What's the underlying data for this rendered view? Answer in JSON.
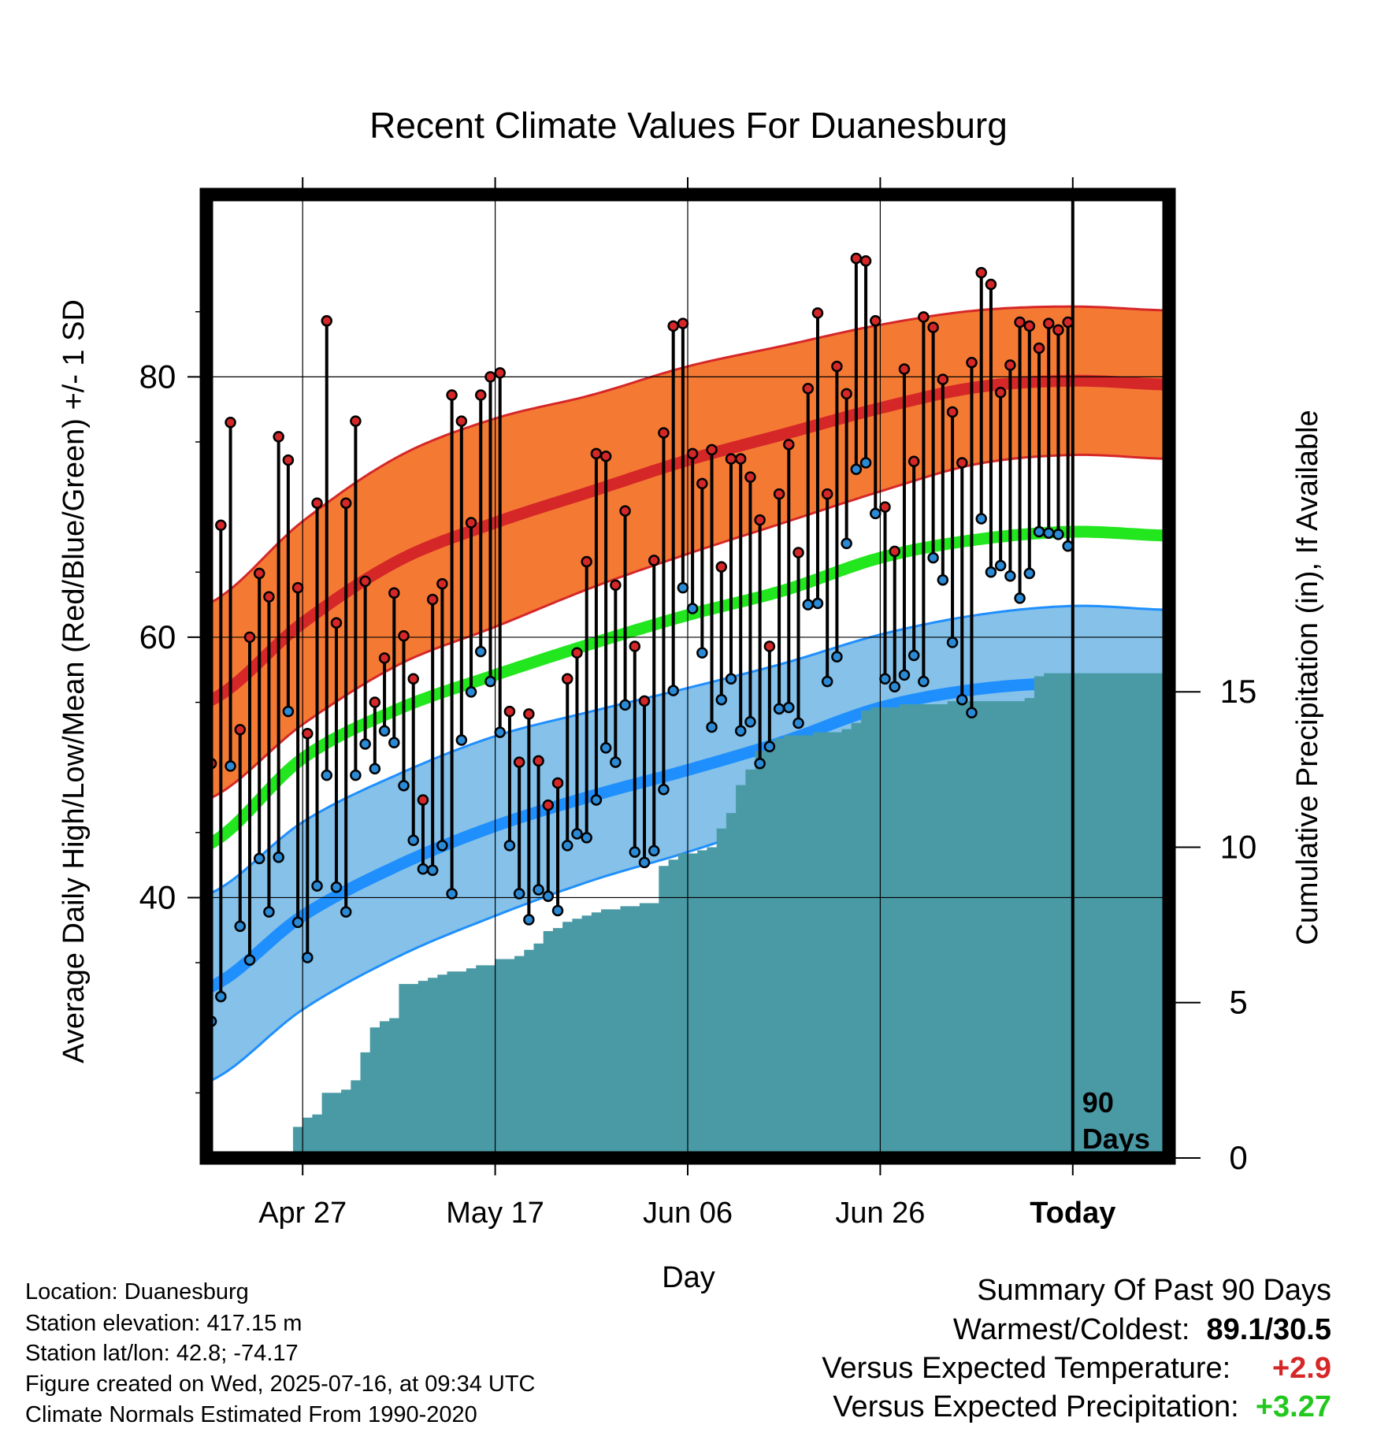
{
  "title": "Recent Climate Values For Duanesburg",
  "chart_data": {
    "type": "line",
    "title": "Recent Climate Values For Duanesburg",
    "xlabel": "Day",
    "ylabel": "Average Daily High/Low/Mean (Red/Blue/Green) +/- 1 SD",
    "y2label": "Cumulative Precipitation (in), If Available",
    "x_ticks": [
      "Apr 27",
      "May 17",
      "Jun 06",
      "Jun 26",
      "Today"
    ],
    "x_tick_days": [
      -80,
      -60,
      -40,
      -20,
      0
    ],
    "x_range_days": [
      -90,
      10
    ],
    "ylim": [
      20,
      94
    ],
    "y_ticks": [
      40,
      60,
      80
    ],
    "y2lim": [
      0,
      31
    ],
    "y2_ticks": [
      0,
      5,
      10,
      15
    ],
    "today_annotation": [
      "90",
      "Days"
    ],
    "normals": {
      "day": [
        -90,
        -80,
        -70,
        -60,
        -50,
        -40,
        -30,
        -20,
        -10,
        0,
        10
      ],
      "high": [
        55.0,
        61.1,
        65.9,
        68.8,
        71.2,
        73.6,
        75.6,
        77.6,
        79.2,
        79.7,
        79.4
      ],
      "high_sd": [
        7.5,
        7.8,
        8.0,
        8.0,
        7.4,
        7.2,
        6.8,
        6.4,
        5.9,
        5.7,
        5.7
      ],
      "low": [
        33.0,
        38.6,
        42.5,
        45.5,
        47.8,
        49.8,
        52.0,
        54.6,
        56.0,
        56.5,
        56.4
      ],
      "low_sd": [
        7.2,
        7.2,
        7.0,
        6.9,
        6.5,
        6.3,
        6.0,
        5.6,
        5.7,
        5.9,
        5.7
      ],
      "mean": [
        44.0,
        50.7,
        54.5,
        57.1,
        59.5,
        61.7,
        63.6,
        66.1,
        67.5,
        68.1,
        67.8
      ]
    },
    "daily": {
      "highs": [
        50.3,
        68.6,
        76.5,
        52.9,
        60.0,
        64.9,
        63.1,
        75.4,
        73.6,
        63.8,
        52.6,
        70.3,
        84.3,
        61.1,
        70.3,
        76.6,
        64.3,
        55.0,
        58.4,
        63.4,
        60.1,
        56.8,
        47.5,
        62.9,
        64.1,
        78.6,
        76.6,
        68.8,
        78.6,
        80.0,
        80.3,
        54.3,
        50.4,
        54.1,
        50.5,
        47.1,
        48.8,
        56.8,
        58.8,
        65.8,
        74.1,
        73.9,
        64.0,
        69.7,
        59.3,
        55.1,
        65.9,
        75.7,
        83.9,
        84.1,
        74.1,
        71.8,
        74.4,
        65.4,
        73.7,
        73.7,
        72.3,
        69.0,
        59.3,
        71.0,
        74.8,
        66.5,
        79.1,
        84.9,
        71.0,
        80.8,
        78.7,
        89.1,
        88.9,
        84.3,
        70.0,
        66.6,
        80.6,
        73.5,
        84.6,
        83.8,
        79.8,
        77.3,
        73.4,
        81.1,
        88.0,
        87.1,
        78.8,
        80.9,
        84.2,
        83.9,
        82.2,
        84.1,
        83.6,
        84.2
      ],
      "lows": [
        30.5,
        32.4,
        50.1,
        37.8,
        35.2,
        43.0,
        38.9,
        43.1,
        54.3,
        38.1,
        35.4,
        40.9,
        49.4,
        40.8,
        38.9,
        49.4,
        51.8,
        49.9,
        52.8,
        51.9,
        48.6,
        44.4,
        42.2,
        42.1,
        44.0,
        40.3,
        52.1,
        55.8,
        58.9,
        56.6,
        52.7,
        44.0,
        40.3,
        38.3,
        40.6,
        40.1,
        39.0,
        44.0,
        44.9,
        44.6,
        47.5,
        51.5,
        50.4,
        54.8,
        43.5,
        42.7,
        43.6,
        48.3,
        55.9,
        63.8,
        62.2,
        58.8,
        53.1,
        55.2,
        56.8,
        52.8,
        53.5,
        50.3,
        51.6,
        54.5,
        54.6,
        53.4,
        62.5,
        62.6,
        56.6,
        58.5,
        67.2,
        72.9,
        73.4,
        69.5,
        56.8,
        56.2,
        57.1,
        58.6,
        56.6,
        66.1,
        64.4,
        59.6,
        55.2,
        54.2,
        69.1,
        65.0,
        65.5,
        64.7,
        63.0,
        64.9,
        68.1,
        68.0,
        67.9,
        67.0
      ],
      "precip_cumulative": [
        0.0,
        0.0,
        0.0,
        0.0,
        0.0,
        0.0,
        0.0,
        0.0,
        0.0,
        1.0,
        1.3,
        1.4,
        2.1,
        2.1,
        2.2,
        2.5,
        3.4,
        4.2,
        4.4,
        4.5,
        5.6,
        5.6,
        5.7,
        5.8,
        5.9,
        6.0,
        6.0,
        6.1,
        6.2,
        6.2,
        6.4,
        6.4,
        6.5,
        6.7,
        6.9,
        7.3,
        7.4,
        7.6,
        7.7,
        7.8,
        7.9,
        8.0,
        8.0,
        8.1,
        8.1,
        8.2,
        8.2,
        9.4,
        9.6,
        9.8,
        9.8,
        9.9,
        10.0,
        10.6,
        11.1,
        12.0,
        12.5,
        13.1,
        13.4,
        13.5,
        13.6,
        13.6,
        13.6,
        13.7,
        13.7,
        13.7,
        13.8,
        14.0,
        14.4,
        14.5,
        14.5,
        14.5,
        14.6,
        14.6,
        14.6,
        14.6,
        14.6,
        14.7,
        14.7,
        14.7,
        14.7,
        14.7,
        14.7,
        14.7,
        14.7,
        14.8,
        15.5,
        15.6,
        15.6,
        15.6
      ]
    }
  },
  "info": [
    "Location: Duanesburg",
    "Station elevation: 417.15 m",
    "Station lat/lon: 42.8; -74.17",
    "Figure created on Wed, 2025-07-16, at 09:34 UTC",
    "Climate Normals Estimated From 1990-2020"
  ],
  "summary": {
    "heading": "Summary Of Past 90 Days",
    "warm_label": "Warmest/Coldest:",
    "warm_value": "89.1/30.5",
    "temp_label": "Versus Expected Temperature:",
    "temp_value": "+2.9",
    "precip_label": "Versus Expected Precipitation:",
    "precip_value": "+3.27"
  },
  "colors": {
    "high_band": "#f47a34",
    "high_line": "#d62728",
    "low_band": "#85c1e9",
    "low_line": "#1f8ffe",
    "mean_line": "#22e61e",
    "precip_fill": "#4a9aa5",
    "high_marker": "#d62728",
    "low_marker": "#2a8ad6"
  }
}
